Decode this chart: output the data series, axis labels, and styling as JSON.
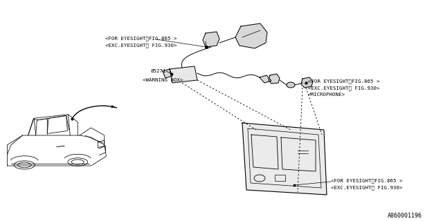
{
  "bg_color": "#ffffff",
  "line_color": "#000000",
  "fig_width": 6.4,
  "fig_height": 3.2,
  "dpi": 100,
  "watermark": "A860001196",
  "label_top1": "<FOR EYESIGHT‧FIG.865 >",
  "label_top2": "<EXC.EYESIGHT‧ FIG.930>",
  "label_wb_num": "85271",
  "label_wb": "<WARNING BOX>",
  "label_mic1": "<FOR EYESIGHT‧FIG.865 >",
  "label_mic2": "<EXC.EYESIGHT‧ FIG.930>",
  "label_mic3": "<MICROPHONE>",
  "label_con1": "<FOR EYESIGHT‧FIG.865 >",
  "label_con2": "<EXC.EYESIGHT‧ FIG.930>"
}
